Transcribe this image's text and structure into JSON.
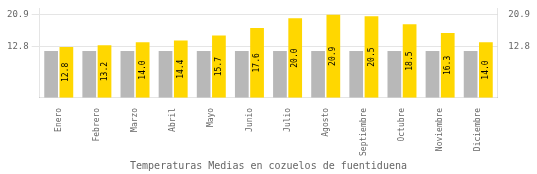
{
  "chart_data": {
    "type": "bar",
    "title": "Temperaturas Medias en cozuelos de fuentiduena",
    "categories": [
      "Enero",
      "Febrero",
      "Marzo",
      "Abril",
      "Mayo",
      "Junio",
      "Julio",
      "Agosto",
      "Septiembre",
      "Octubre",
      "Noviembre",
      "Diciembre"
    ],
    "series": [
      {
        "color": "#B8B8B8",
        "values": [
          11.8,
          11.8,
          11.8,
          11.8,
          11.8,
          11.8,
          11.8,
          11.8,
          11.8,
          11.8,
          11.8,
          11.8
        ]
      },
      {
        "color": "#FFD700",
        "values": [
          12.8,
          13.2,
          14.0,
          14.4,
          15.7,
          17.6,
          20.0,
          20.9,
          20.5,
          18.5,
          16.3,
          14.0
        ],
        "value_labels": [
          "12.8",
          "13.2",
          "14.0",
          "14.4",
          "15.7",
          "17.6",
          "20.0",
          "20.9",
          "20.5",
          "18.5",
          "16.3",
          "14.0"
        ],
        "data_labels": true
      }
    ],
    "ylim": [
      0,
      22.5
    ],
    "yticks": [
      12.8,
      20.9
    ],
    "y2lim": [
      0,
      22.5
    ],
    "y2ticks": [
      12.8,
      20.9
    ],
    "grid": true
  }
}
